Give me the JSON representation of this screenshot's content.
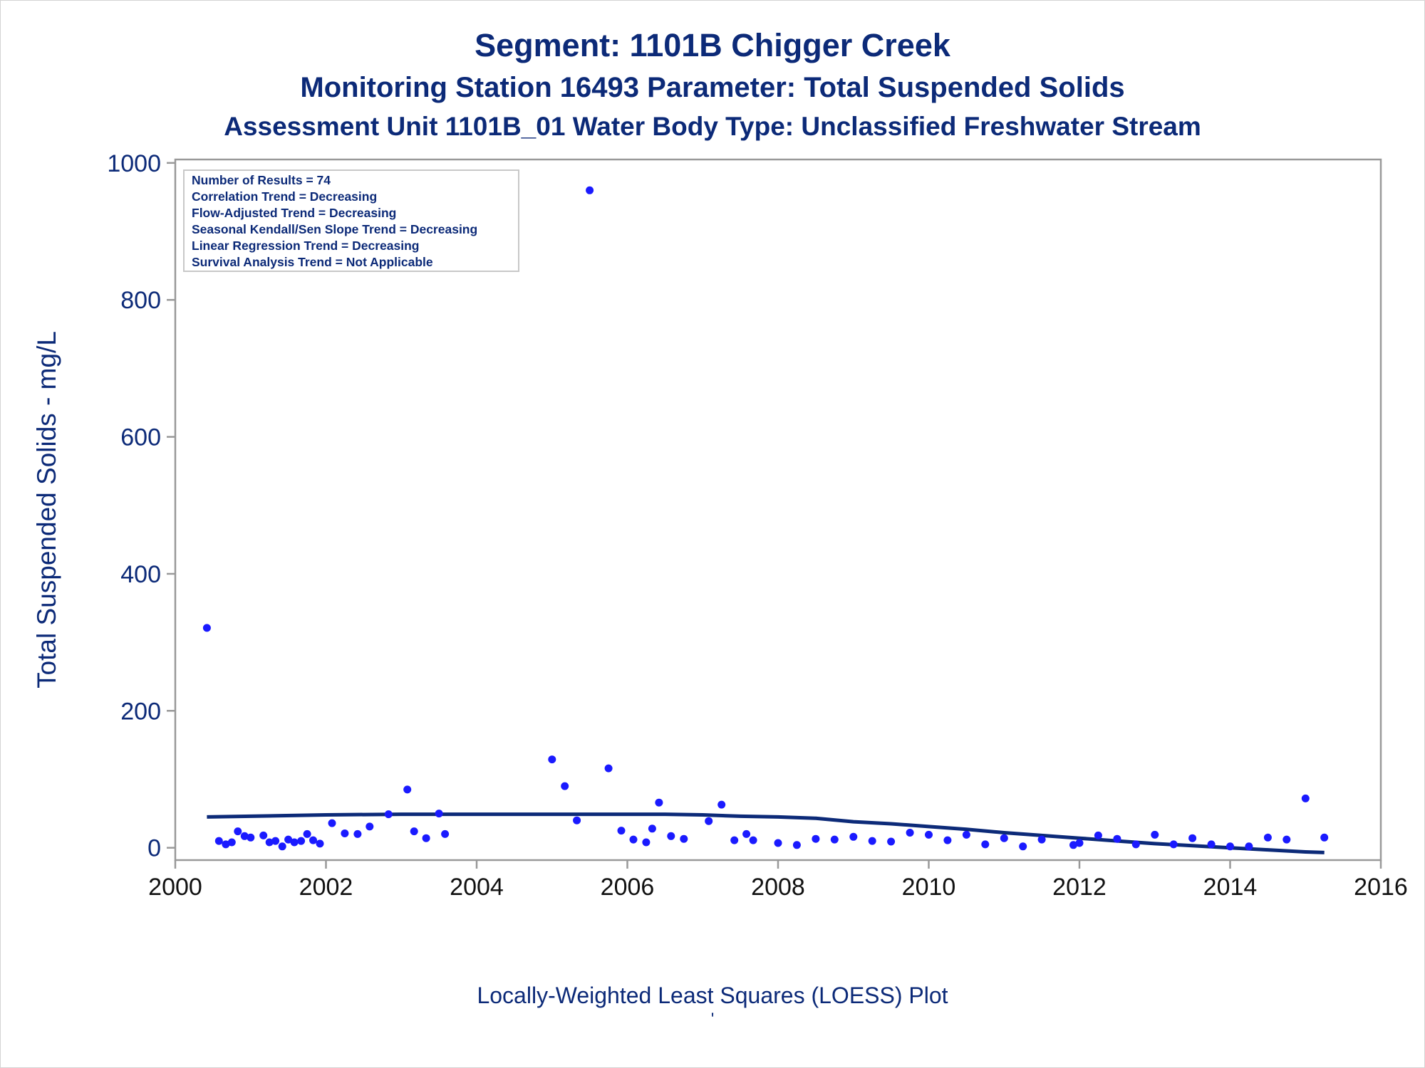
{
  "titles": {
    "line1": "Segment: 1101B  Chigger Creek",
    "line2": "Monitoring Station 16493 Parameter: Total Suspended Solids",
    "line3": "Assessment Unit 1101B_01   Water Body Type: Unclassified Freshwater Stream"
  },
  "footnote": {
    "line1": "Locally-Weighted Least Squares (LOESS) Plot",
    "line2": "'"
  },
  "colors": {
    "text": "#0c2a78",
    "points": "#1a1aff",
    "loess": "#0c2a78",
    "axis": "#999999"
  },
  "chart_data": {
    "type": "scatter",
    "ylabel": "Total Suspended Solids - mg/L",
    "xlabel": "",
    "xlim": [
      2000,
      2016
    ],
    "ylim": [
      -18,
      1005
    ],
    "x_ticks": [
      2000,
      2002,
      2004,
      2006,
      2008,
      2010,
      2012,
      2014,
      2016
    ],
    "y_ticks": [
      0,
      200,
      400,
      600,
      800,
      1000
    ],
    "grid": false,
    "inset_box": {
      "position": "top-left",
      "lines": [
        "Number of Results = 74",
        "Correlation Trend = Decreasing",
        "Flow-Adjusted Trend = Decreasing",
        "Seasonal Kendall/Sen Slope Trend = Decreasing",
        "Linear Regression Trend = Decreasing",
        "Survival Analysis Trend = Not Applicable"
      ]
    },
    "points": [
      [
        2000.42,
        321
      ],
      [
        2000.58,
        10
      ],
      [
        2000.67,
        5
      ],
      [
        2000.75,
        8
      ],
      [
        2000.83,
        24
      ],
      [
        2000.92,
        17
      ],
      [
        2001.0,
        15
      ],
      [
        2001.17,
        18
      ],
      [
        2001.25,
        8
      ],
      [
        2001.33,
        10
      ],
      [
        2001.42,
        2
      ],
      [
        2001.5,
        12
      ],
      [
        2001.58,
        8
      ],
      [
        2001.67,
        10
      ],
      [
        2001.75,
        20
      ],
      [
        2001.83,
        11
      ],
      [
        2001.92,
        6
      ],
      [
        2002.08,
        36
      ],
      [
        2002.25,
        21
      ],
      [
        2002.42,
        20
      ],
      [
        2002.58,
        31
      ],
      [
        2002.83,
        49
      ],
      [
        2003.08,
        85
      ],
      [
        2003.17,
        24
      ],
      [
        2003.33,
        14
      ],
      [
        2003.5,
        50
      ],
      [
        2003.58,
        20
      ],
      [
        2005.0,
        129
      ],
      [
        2005.17,
        90
      ],
      [
        2005.33,
        40
      ],
      [
        2005.5,
        960
      ],
      [
        2005.75,
        116
      ],
      [
        2005.92,
        25
      ],
      [
        2006.08,
        12
      ],
      [
        2006.25,
        8
      ],
      [
        2006.33,
        28
      ],
      [
        2006.42,
        66
      ],
      [
        2006.58,
        17
      ],
      [
        2006.75,
        13
      ],
      [
        2007.08,
        39
      ],
      [
        2007.25,
        63
      ],
      [
        2007.42,
        11
      ],
      [
        2007.58,
        20
      ],
      [
        2007.67,
        11
      ],
      [
        2008.0,
        7
      ],
      [
        2008.25,
        4
      ],
      [
        2008.5,
        13
      ],
      [
        2008.75,
        12
      ],
      [
        2009.0,
        16
      ],
      [
        2009.25,
        10
      ],
      [
        2009.5,
        9
      ],
      [
        2009.75,
        22
      ],
      [
        2010.0,
        19
      ],
      [
        2010.25,
        11
      ],
      [
        2010.5,
        19
      ],
      [
        2010.75,
        5
      ],
      [
        2011.0,
        14
      ],
      [
        2011.25,
        2
      ],
      [
        2011.5,
        12
      ],
      [
        2011.92,
        4
      ],
      [
        2012.0,
        7
      ],
      [
        2012.25,
        18
      ],
      [
        2012.5,
        13
      ],
      [
        2012.75,
        5
      ],
      [
        2013.0,
        19
      ],
      [
        2013.25,
        5
      ],
      [
        2013.5,
        14
      ],
      [
        2013.75,
        5
      ],
      [
        2014.0,
        2
      ],
      [
        2014.25,
        2
      ],
      [
        2014.5,
        15
      ],
      [
        2014.75,
        12
      ],
      [
        2015.0,
        72
      ],
      [
        2015.25,
        15
      ]
    ],
    "loess": [
      [
        2000.42,
        45
      ],
      [
        2001.0,
        46
      ],
      [
        2002.0,
        48
      ],
      [
        2003.0,
        49
      ],
      [
        2004.0,
        49
      ],
      [
        2005.0,
        49
      ],
      [
        2006.0,
        49
      ],
      [
        2006.5,
        49
      ],
      [
        2007.0,
        48
      ],
      [
        2007.5,
        46
      ],
      [
        2008.0,
        45
      ],
      [
        2008.5,
        43
      ],
      [
        2009.0,
        38
      ],
      [
        2009.5,
        35
      ],
      [
        2010.0,
        31
      ],
      [
        2010.5,
        27
      ],
      [
        2011.0,
        22
      ],
      [
        2011.5,
        18
      ],
      [
        2012.0,
        14
      ],
      [
        2012.5,
        10
      ],
      [
        2013.0,
        6
      ],
      [
        2013.5,
        3
      ],
      [
        2014.0,
        0
      ],
      [
        2014.5,
        -3
      ],
      [
        2015.0,
        -6
      ],
      [
        2015.25,
        -7
      ]
    ]
  }
}
